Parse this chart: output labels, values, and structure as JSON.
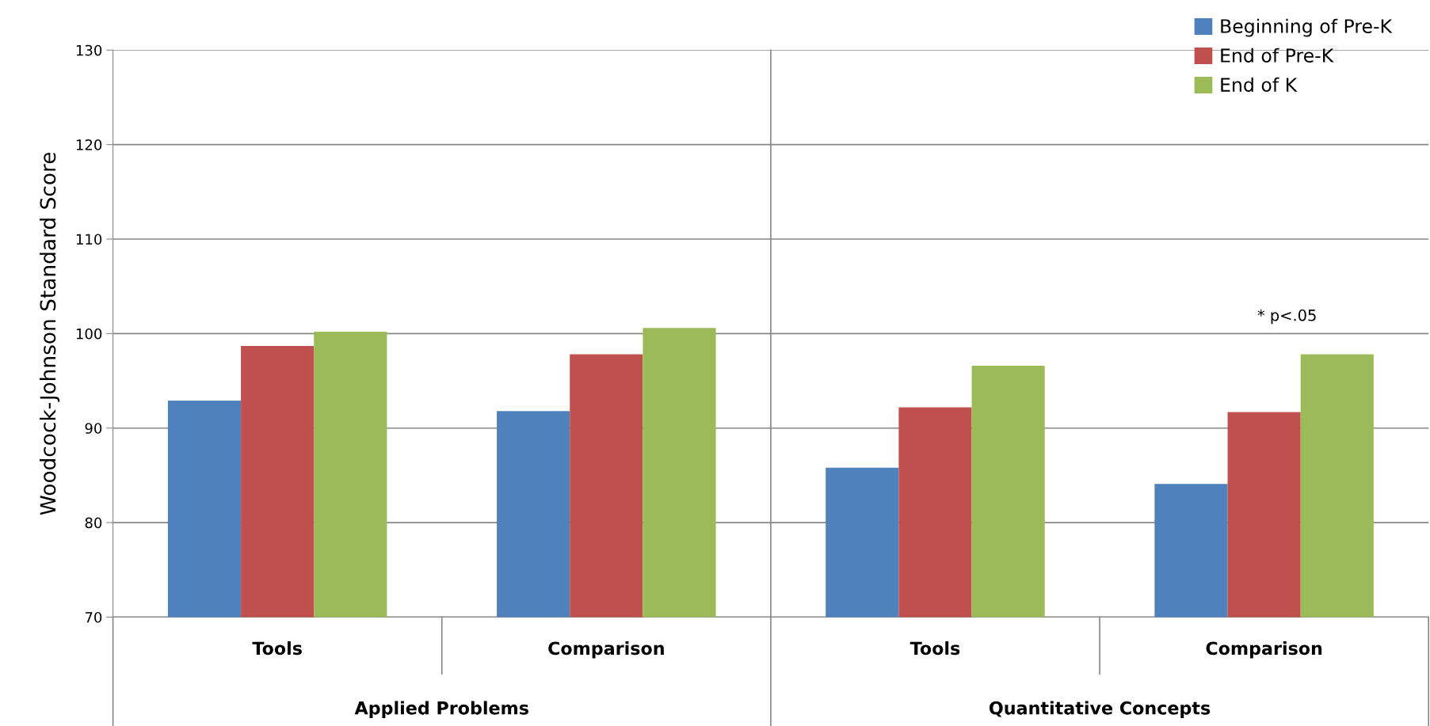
{
  "chart_data": {
    "type": "bar",
    "ylabel": "Woodcock-Johnson Standard Score",
    "categories": [
      "Tools",
      "Comparison",
      "Tools",
      "Comparison"
    ],
    "series": [
      {
        "name": "Beginning of Pre-K",
        "color": "#4f81bd",
        "values": [
          92.9,
          91.8,
          85.8,
          84.1
        ]
      },
      {
        "name": "End of Pre-K",
        "color": "#c0504d",
        "values": [
          98.7,
          97.8,
          92.2,
          91.7
        ]
      },
      {
        "name": "End of K",
        "color": "#9bbb59",
        "values": [
          100.2,
          100.6,
          96.6,
          97.8
        ]
      }
    ],
    "ylim": [
      70,
      130
    ],
    "yticks": [
      70,
      80,
      90,
      100,
      110,
      120,
      130
    ],
    "grid": "y",
    "legend": "top right",
    "annotations": [
      "Applied Problems",
      "Quantitative Concepts",
      "* p<.05"
    ]
  }
}
